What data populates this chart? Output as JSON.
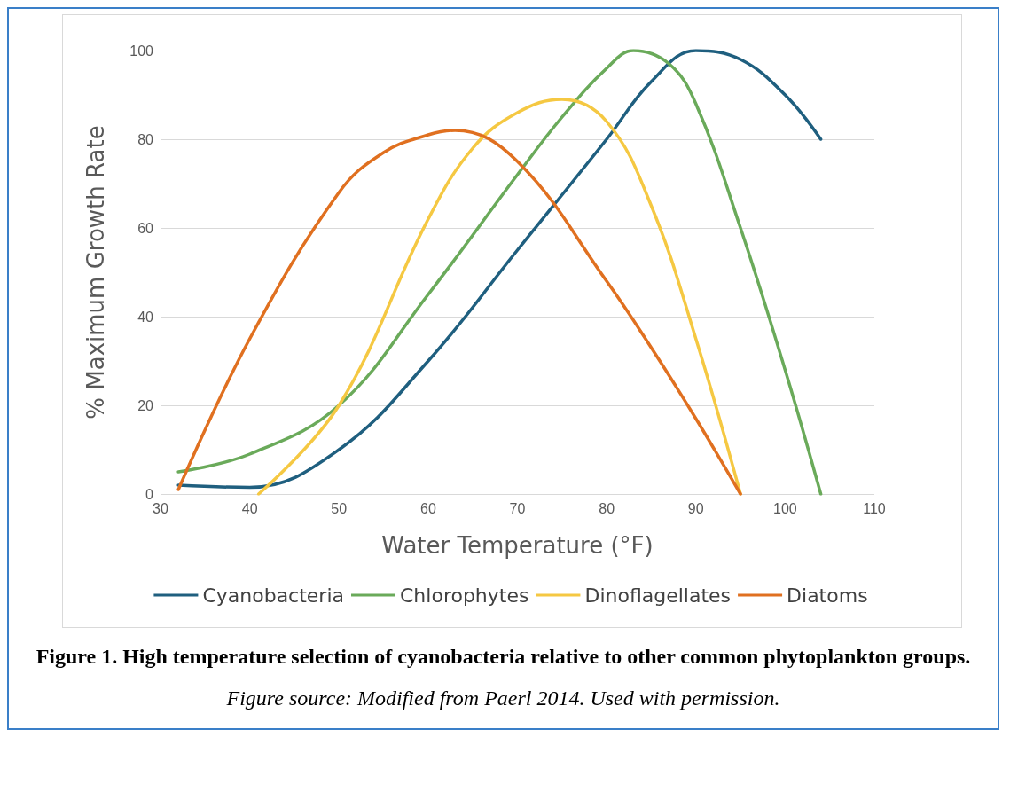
{
  "chart_data": {
    "type": "line",
    "title": "Figure 1. High temperature selection of cyanobacteria relative to other common phytoplankton groups.",
    "xlabel": "Water Temperature (°F)",
    "ylabel": "% Maximum Growth Rate",
    "annotations": [
      "Figure source:  Modified from Paerl 2014.  Used with permission."
    ],
    "xlim": [
      30,
      110
    ],
    "xticks": [
      30,
      40,
      50,
      60,
      70,
      80,
      90,
      100,
      110
    ],
    "ylim": [
      0,
      100
    ],
    "yticks": [
      0,
      20,
      40,
      60,
      80,
      100
    ],
    "grid": "y",
    "legend": "bottom",
    "marker": "none",
    "line_style": "solid",
    "series": [
      {
        "name": "Cyanobacteria",
        "color": "#1f5f7f",
        "x": [
          32,
          40,
          50,
          60,
          70,
          80,
          85,
          90,
          95,
          100,
          104
        ],
        "values": [
          2,
          1.5,
          10,
          30,
          55,
          80,
          93,
          100,
          98,
          90,
          80
        ]
      },
      {
        "name": "Chlorophytes",
        "color": "#6aaa5a",
        "x": [
          32,
          40,
          50,
          60,
          70,
          75,
          80,
          83,
          87,
          90,
          95,
          100,
          104
        ],
        "values": [
          5,
          9,
          20,
          45,
          72,
          85,
          96,
          100,
          97,
          88,
          60,
          28,
          0
        ]
      },
      {
        "name": "Dinoflagellates",
        "color": "#f5c842",
        "x": [
          41,
          50,
          60,
          65,
          70,
          75,
          80,
          85,
          90,
          95
        ],
        "values": [
          0,
          20,
          62,
          78,
          86,
          89,
          84,
          65,
          35,
          0
        ]
      },
      {
        "name": "Diatoms",
        "color": "#e07020",
        "x": [
          32,
          40,
          50,
          55,
          60,
          63,
          70,
          80,
          85,
          90,
          95
        ],
        "values": [
          1,
          35,
          68,
          77,
          81,
          82,
          75,
          48,
          33,
          17,
          0
        ]
      }
    ]
  }
}
